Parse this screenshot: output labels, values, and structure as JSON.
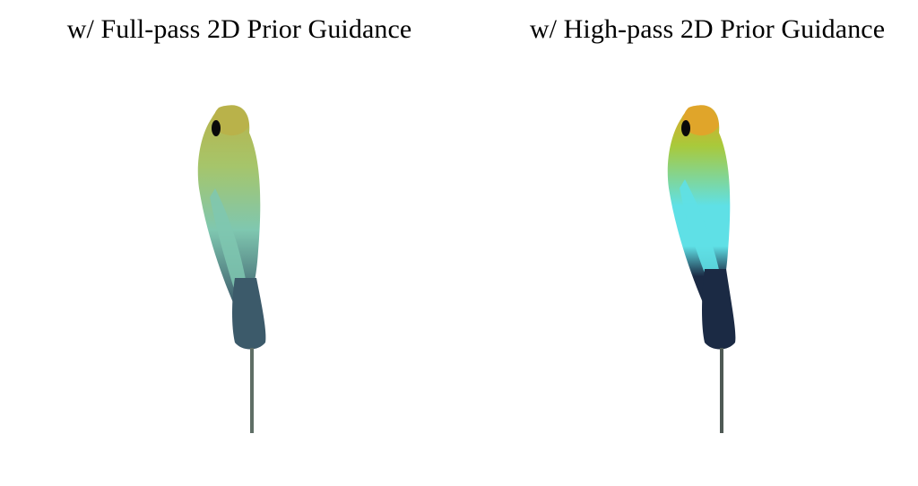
{
  "panels": [
    {
      "title": "w/ Full-pass 2D Prior Guidance",
      "image": {
        "subject": "bird-render",
        "colors": {
          "head": "#b9b24a",
          "body": "#a6c56a",
          "wing": "#7fc7b0",
          "tail": "#3c5a6a",
          "stick": "#5f6f66"
        }
      }
    },
    {
      "title": "w/ High-pass 2D Prior Guidance",
      "image": {
        "subject": "bird-render",
        "colors": {
          "head": "#e0a52a",
          "body": "#a9c93a",
          "wing": "#5fe0e6",
          "tail": "#1b2a44",
          "stick": "#4f5a55"
        }
      }
    }
  ]
}
